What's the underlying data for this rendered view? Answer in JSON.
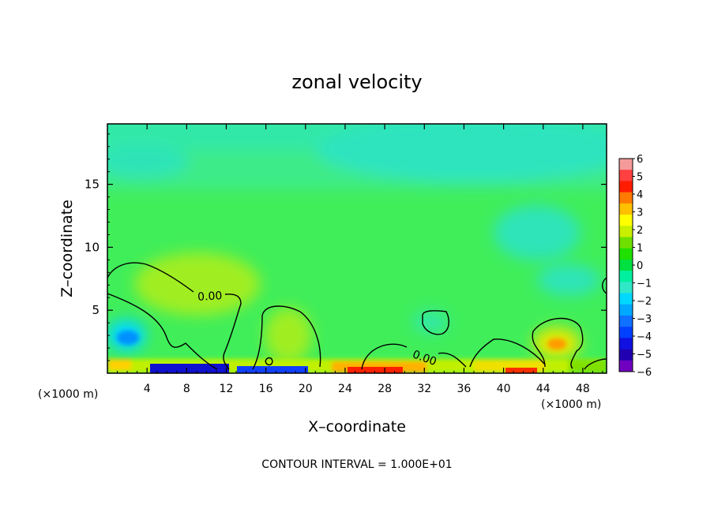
{
  "chart_data": {
    "type": "heatmap",
    "title": "zonal velocity",
    "xlabel": "X–coordinate",
    "ylabel": "Z–coordinate",
    "x_unit_left": "(×1000 m)",
    "x_unit_right": "(×1000 m)",
    "footer": "CONTOUR INTERVAL = 1.000E+01",
    "xlim": [
      0,
      50.4
    ],
    "ylim": [
      0,
      19.8
    ],
    "x_ticks": [
      4,
      8,
      12,
      16,
      20,
      24,
      28,
      32,
      36,
      40,
      44,
      48
    ],
    "y_ticks": [
      5,
      10,
      15
    ],
    "colorbar": {
      "ticks": [
        "6",
        "5",
        "4",
        "3",
        "2",
        "1",
        "0",
        "−1",
        "−2",
        "−3",
        "−4",
        "−5",
        "−6"
      ],
      "colors": [
        "#f59a9a",
        "#ff4040",
        "#ff1c00",
        "#ff7a00",
        "#ffc000",
        "#ffff00",
        "#c8f000",
        "#6ee000",
        "#20e000",
        "#00e040",
        "#00f0a0",
        "#30e8c8",
        "#00d8ff",
        "#00a8ff",
        "#1070ff",
        "#0040ff",
        "#1010e0",
        "#2000b0",
        "#7000c0"
      ]
    },
    "field_description_values": {
      "background": 0,
      "upper_region": -1.5,
      "surface_extremes": [
        -6,
        4
      ]
    },
    "contour_labels": [
      {
        "text": "0.00",
        "x": 11.5,
        "z": 6.3
      },
      {
        "text": "0.00",
        "x": 32.0,
        "z": 1.5
      }
    ],
    "grid": false
  }
}
